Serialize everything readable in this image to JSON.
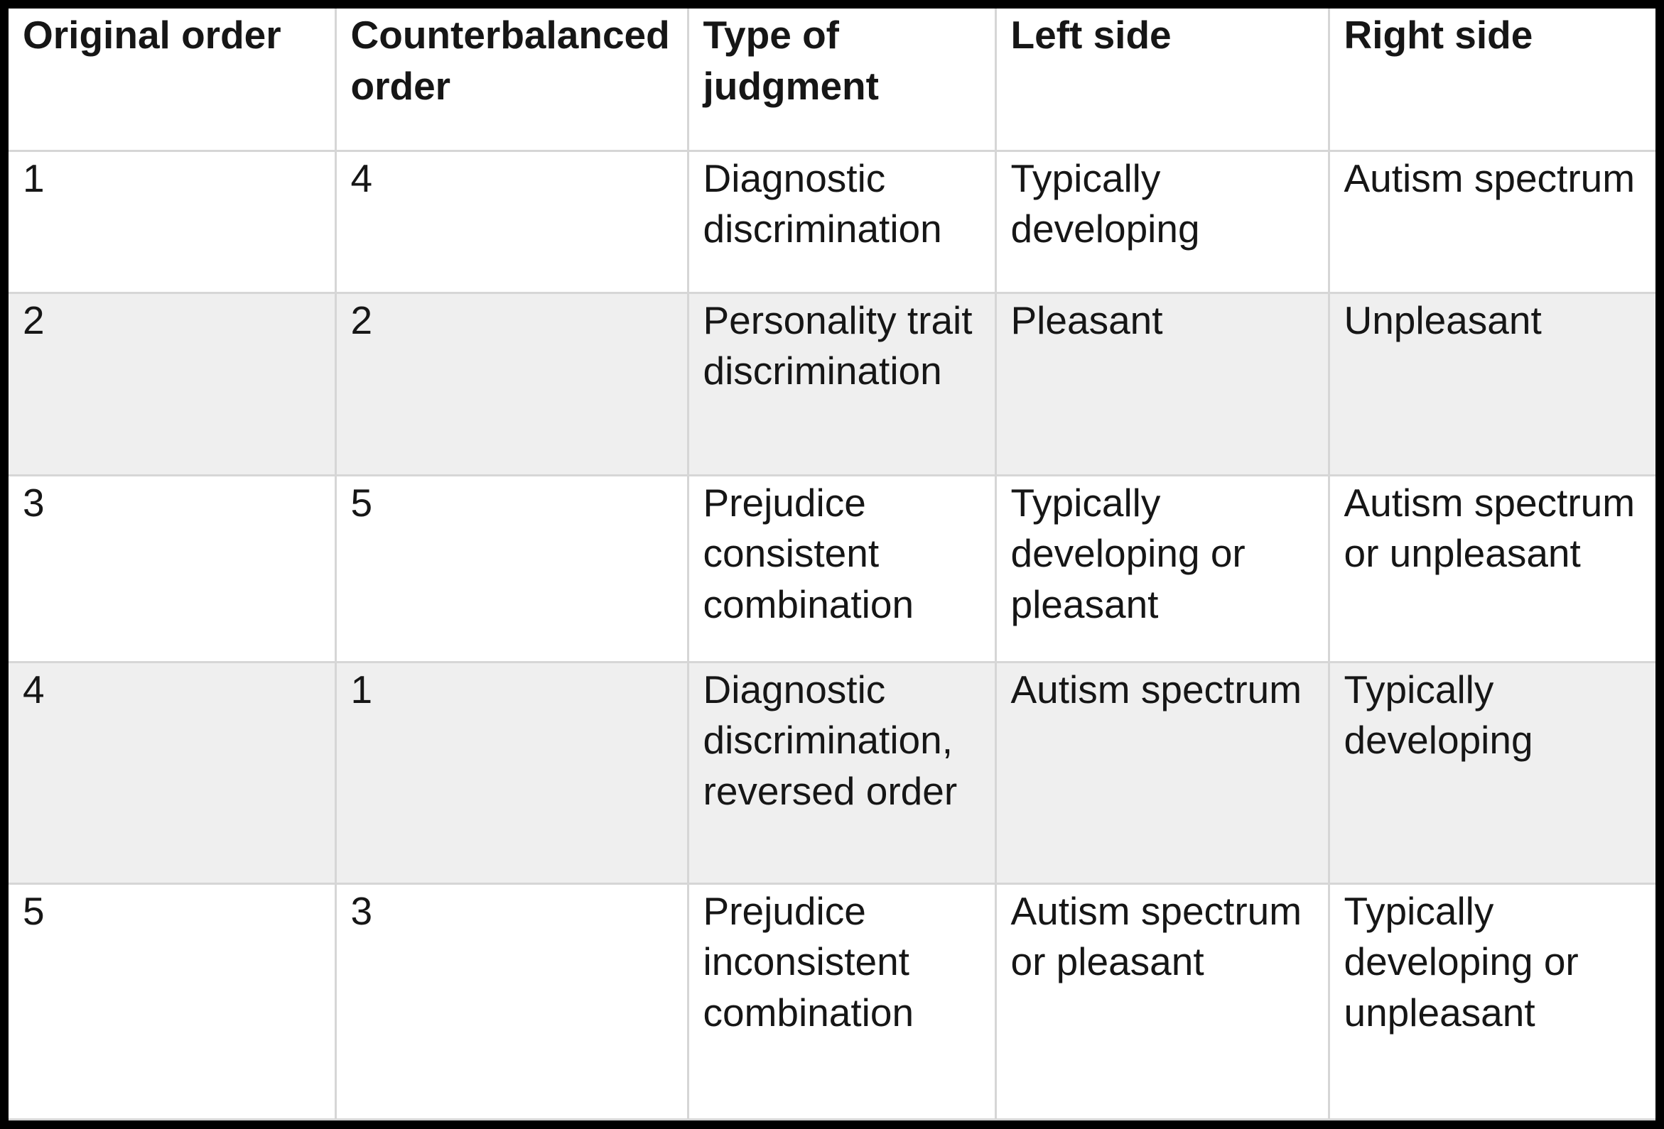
{
  "colors": {
    "row_stripe": "#efefef",
    "grid_line": "#d6d6d6",
    "frame": "#000000",
    "text": "#161616"
  },
  "table": {
    "headers": [
      "Original order",
      "Counterbalanced order",
      "Type of judgment",
      "Left side",
      "Right side"
    ],
    "rows": [
      [
        "1",
        "4",
        "Diagnostic discrimination",
        "Typically developing",
        "Autism spectrum"
      ],
      [
        "2",
        "2",
        "Personality trait discrimination",
        "Pleasant",
        "Unpleasant"
      ],
      [
        "3",
        "5",
        "Prejudice consistent combination",
        "Typically developing or pleasant",
        "Autism spectrum or unpleasant"
      ],
      [
        "4",
        "1",
        "Diagnostic discrimination, reversed order",
        "Autism spectrum",
        "Typically developing"
      ],
      [
        "5",
        "3",
        "Prejudice inconsistent combination",
        "Autism spectrum or pleasant",
        "Typically developing or unpleasant"
      ]
    ]
  }
}
